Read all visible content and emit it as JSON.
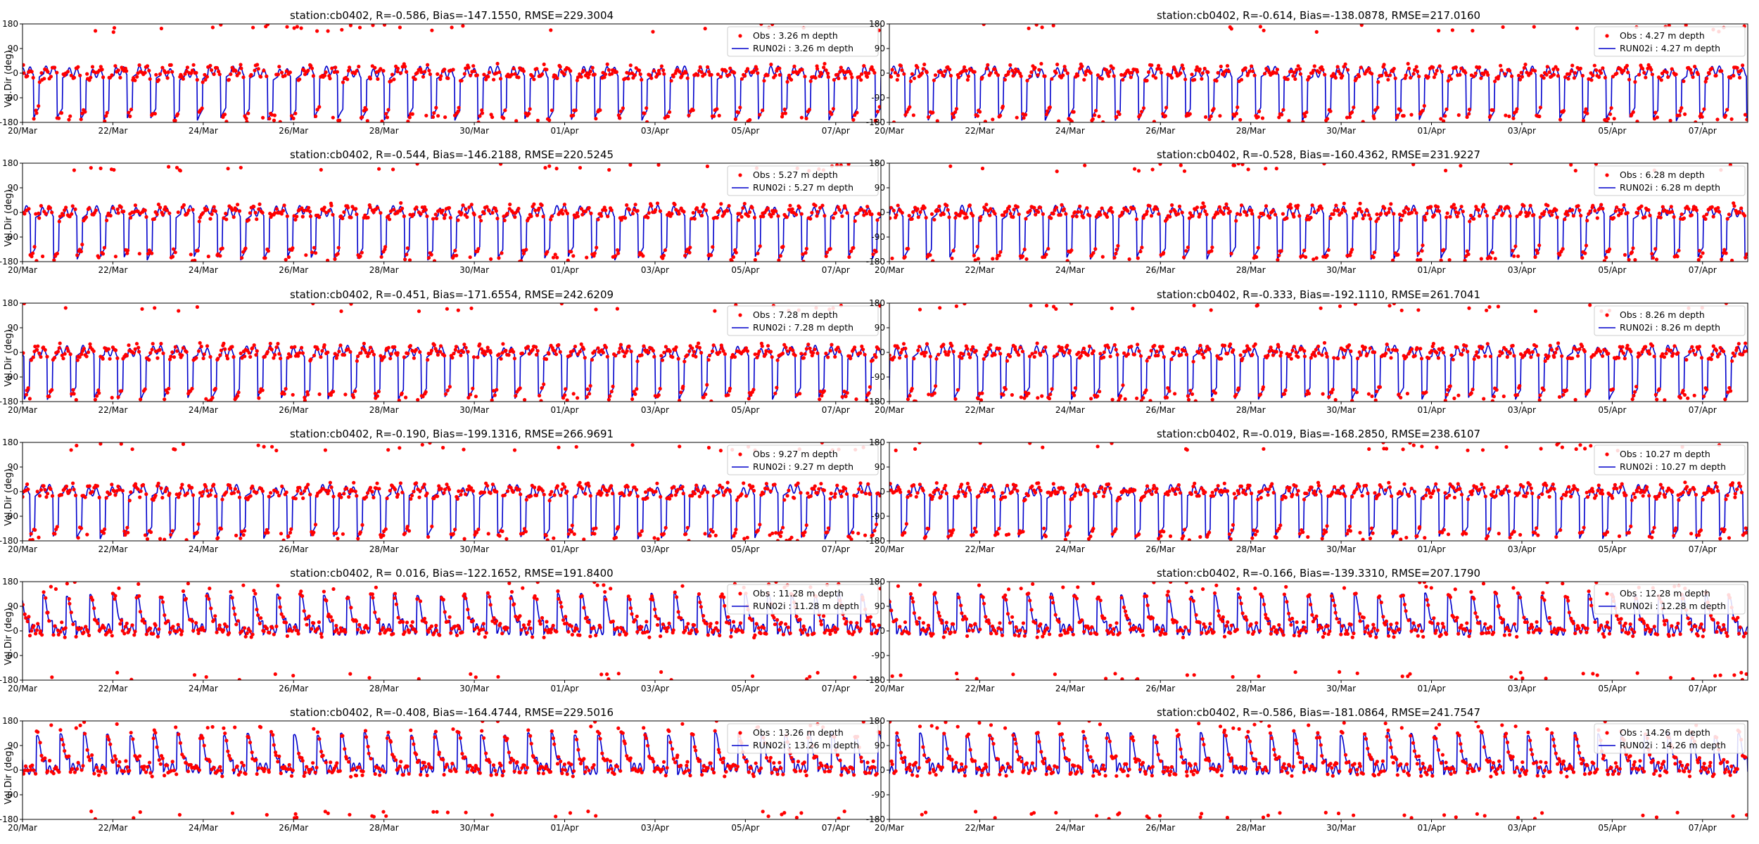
{
  "figure": {
    "ylabel": "Vel.Dir (deg)",
    "yticks": [
      -180,
      -90,
      0,
      90,
      180
    ],
    "xticks": [
      "20/Mar",
      "22/Mar",
      "24/Mar",
      "26/Mar",
      "28/Mar",
      "30/Mar",
      "01/Apr",
      "03/Apr",
      "05/Apr",
      "07/Apr"
    ],
    "obs_color": "#ff0000",
    "model_color": "#0000cc"
  },
  "chart_data": [
    {
      "type": "scatter",
      "title": "station:cb0402, R=-0.586, Bias=-147.1550, RMSE=229.3004",
      "ylabel": "Vel.Dir (deg)",
      "ylim": [
        -180,
        180
      ],
      "xlim": [
        "20/Mar",
        "08/Apr"
      ],
      "series": [
        {
          "name": "Obs : 3.26 m depth",
          "type": "scatter"
        },
        {
          "name": "RUN02i : 3.26 m depth",
          "type": "line"
        }
      ],
      "legend": "top-right",
      "params": {
        "depth": 3.26,
        "R": -0.586,
        "bias": -147.155,
        "rmse": 229.3004
      }
    },
    {
      "type": "scatter",
      "title": "station:cb0402, R=-0.614, Bias=-138.0878, RMSE=217.0160",
      "ylabel": "",
      "ylim": [
        -180,
        180
      ],
      "xlim": [
        "20/Mar",
        "08/Apr"
      ],
      "series": [
        {
          "name": "Obs : 4.27 m depth",
          "type": "scatter"
        },
        {
          "name": "RUN02i : 4.27 m depth",
          "type": "line"
        }
      ],
      "legend": "top-right",
      "params": {
        "depth": 4.27,
        "R": -0.614,
        "bias": -138.0878,
        "rmse": 217.016
      }
    },
    {
      "type": "scatter",
      "title": "station:cb0402, R=-0.544, Bias=-146.2188, RMSE=220.5245",
      "ylabel": "Vel.Dir (deg)",
      "ylim": [
        -180,
        180
      ],
      "xlim": [
        "20/Mar",
        "08/Apr"
      ],
      "series": [
        {
          "name": "Obs : 5.27 m depth",
          "type": "scatter"
        },
        {
          "name": "RUN02i : 5.27 m depth",
          "type": "line"
        }
      ],
      "legend": "top-right",
      "params": {
        "depth": 5.27,
        "R": -0.544,
        "bias": -146.2188,
        "rmse": 220.5245
      }
    },
    {
      "type": "scatter",
      "title": "station:cb0402, R=-0.528, Bias=-160.4362, RMSE=231.9227",
      "ylabel": "",
      "ylim": [
        -180,
        180
      ],
      "xlim": [
        "20/Mar",
        "08/Apr"
      ],
      "series": [
        {
          "name": "Obs : 6.28 m depth",
          "type": "scatter"
        },
        {
          "name": "RUN02i : 6.28 m depth",
          "type": "line"
        }
      ],
      "legend": "top-right",
      "params": {
        "depth": 6.28,
        "R": -0.528,
        "bias": -160.4362,
        "rmse": 231.9227
      }
    },
    {
      "type": "scatter",
      "title": "station:cb0402, R=-0.451, Bias=-171.6554, RMSE=242.6209",
      "ylabel": "Vel.Dir (deg)",
      "ylim": [
        -180,
        180
      ],
      "xlim": [
        "20/Mar",
        "08/Apr"
      ],
      "series": [
        {
          "name": "Obs : 7.28 m depth",
          "type": "scatter"
        },
        {
          "name": "RUN02i : 7.28 m depth",
          "type": "line"
        }
      ],
      "legend": "top-right",
      "params": {
        "depth": 7.28,
        "R": -0.451,
        "bias": -171.6554,
        "rmse": 242.6209
      }
    },
    {
      "type": "scatter",
      "title": "station:cb0402, R=-0.333, Bias=-192.1110, RMSE=261.7041",
      "ylabel": "",
      "ylim": [
        -180,
        180
      ],
      "xlim": [
        "20/Mar",
        "08/Apr"
      ],
      "series": [
        {
          "name": "Obs : 8.26 m depth",
          "type": "scatter"
        },
        {
          "name": "RUN02i : 8.26 m depth",
          "type": "line"
        }
      ],
      "legend": "top-right",
      "params": {
        "depth": 8.26,
        "R": -0.333,
        "bias": -192.111,
        "rmse": 261.7041
      }
    },
    {
      "type": "scatter",
      "title": "station:cb0402, R=-0.190, Bias=-199.1316, RMSE=266.9691",
      "ylabel": "Vel.Dir (deg)",
      "ylim": [
        -180,
        180
      ],
      "xlim": [
        "20/Mar",
        "08/Apr"
      ],
      "series": [
        {
          "name": "Obs : 9.27 m depth",
          "type": "scatter"
        },
        {
          "name": "RUN02i : 9.27 m depth",
          "type": "line"
        }
      ],
      "legend": "top-right",
      "params": {
        "depth": 9.27,
        "R": -0.19,
        "bias": -199.1316,
        "rmse": 266.9691
      }
    },
    {
      "type": "scatter",
      "title": "station:cb0402, R=-0.019, Bias=-168.2850, RMSE=238.6107",
      "ylabel": "",
      "ylim": [
        -180,
        180
      ],
      "xlim": [
        "20/Mar",
        "08/Apr"
      ],
      "series": [
        {
          "name": "Obs : 10.27 m depth",
          "type": "scatter"
        },
        {
          "name": "RUN02i : 10.27 m depth",
          "type": "line"
        }
      ],
      "legend": "top-right",
      "params": {
        "depth": 10.27,
        "R": -0.019,
        "bias": -168.285,
        "rmse": 238.6107
      }
    },
    {
      "type": "scatter",
      "title": "station:cb0402, R= 0.016, Bias=-122.1652, RMSE=191.8400",
      "ylabel": "Vel.Dir (deg)",
      "ylim": [
        -180,
        180
      ],
      "xlim": [
        "20/Mar",
        "08/Apr"
      ],
      "series": [
        {
          "name": "Obs : 11.28 m depth",
          "type": "scatter"
        },
        {
          "name": "RUN02i : 11.28 m depth",
          "type": "line"
        }
      ],
      "legend": "top-right",
      "params": {
        "depth": 11.28,
        "R": 0.016,
        "bias": -122.1652,
        "rmse": 191.84
      }
    },
    {
      "type": "scatter",
      "title": "station:cb0402, R=-0.166, Bias=-139.3310, RMSE=207.1790",
      "ylabel": "",
      "ylim": [
        -180,
        180
      ],
      "xlim": [
        "20/Mar",
        "08/Apr"
      ],
      "series": [
        {
          "name": "Obs : 12.28 m depth",
          "type": "scatter"
        },
        {
          "name": "RUN02i : 12.28 m depth",
          "type": "line"
        }
      ],
      "legend": "top-right",
      "params": {
        "depth": 12.28,
        "R": -0.166,
        "bias": -139.331,
        "rmse": 207.179
      }
    },
    {
      "type": "scatter",
      "title": "station:cb0402, R=-0.408, Bias=-164.4744, RMSE=229.5016",
      "ylabel": "Vel.Dir (deg)",
      "ylim": [
        -180,
        180
      ],
      "xlim": [
        "20/Mar",
        "08/Apr"
      ],
      "series": [
        {
          "name": "Obs : 13.26 m depth",
          "type": "scatter"
        },
        {
          "name": "RUN02i : 13.26 m depth",
          "type": "line"
        }
      ],
      "legend": "top-right",
      "params": {
        "depth": 13.26,
        "R": -0.408,
        "bias": -164.4744,
        "rmse": 229.5016
      }
    },
    {
      "type": "scatter",
      "title": "station:cb0402, R=-0.586, Bias=-181.0864, RMSE=241.7547",
      "ylabel": "",
      "ylim": [
        -180,
        180
      ],
      "xlim": [
        "20/Mar",
        "08/Apr"
      ],
      "series": [
        {
          "name": "Obs : 14.26 m depth",
          "type": "scatter"
        },
        {
          "name": "RUN02i : 14.26 m depth",
          "type": "line"
        }
      ],
      "legend": "top-right",
      "params": {
        "depth": 14.26,
        "R": -0.586,
        "bias": -181.0864,
        "rmse": 241.7547
      }
    }
  ]
}
